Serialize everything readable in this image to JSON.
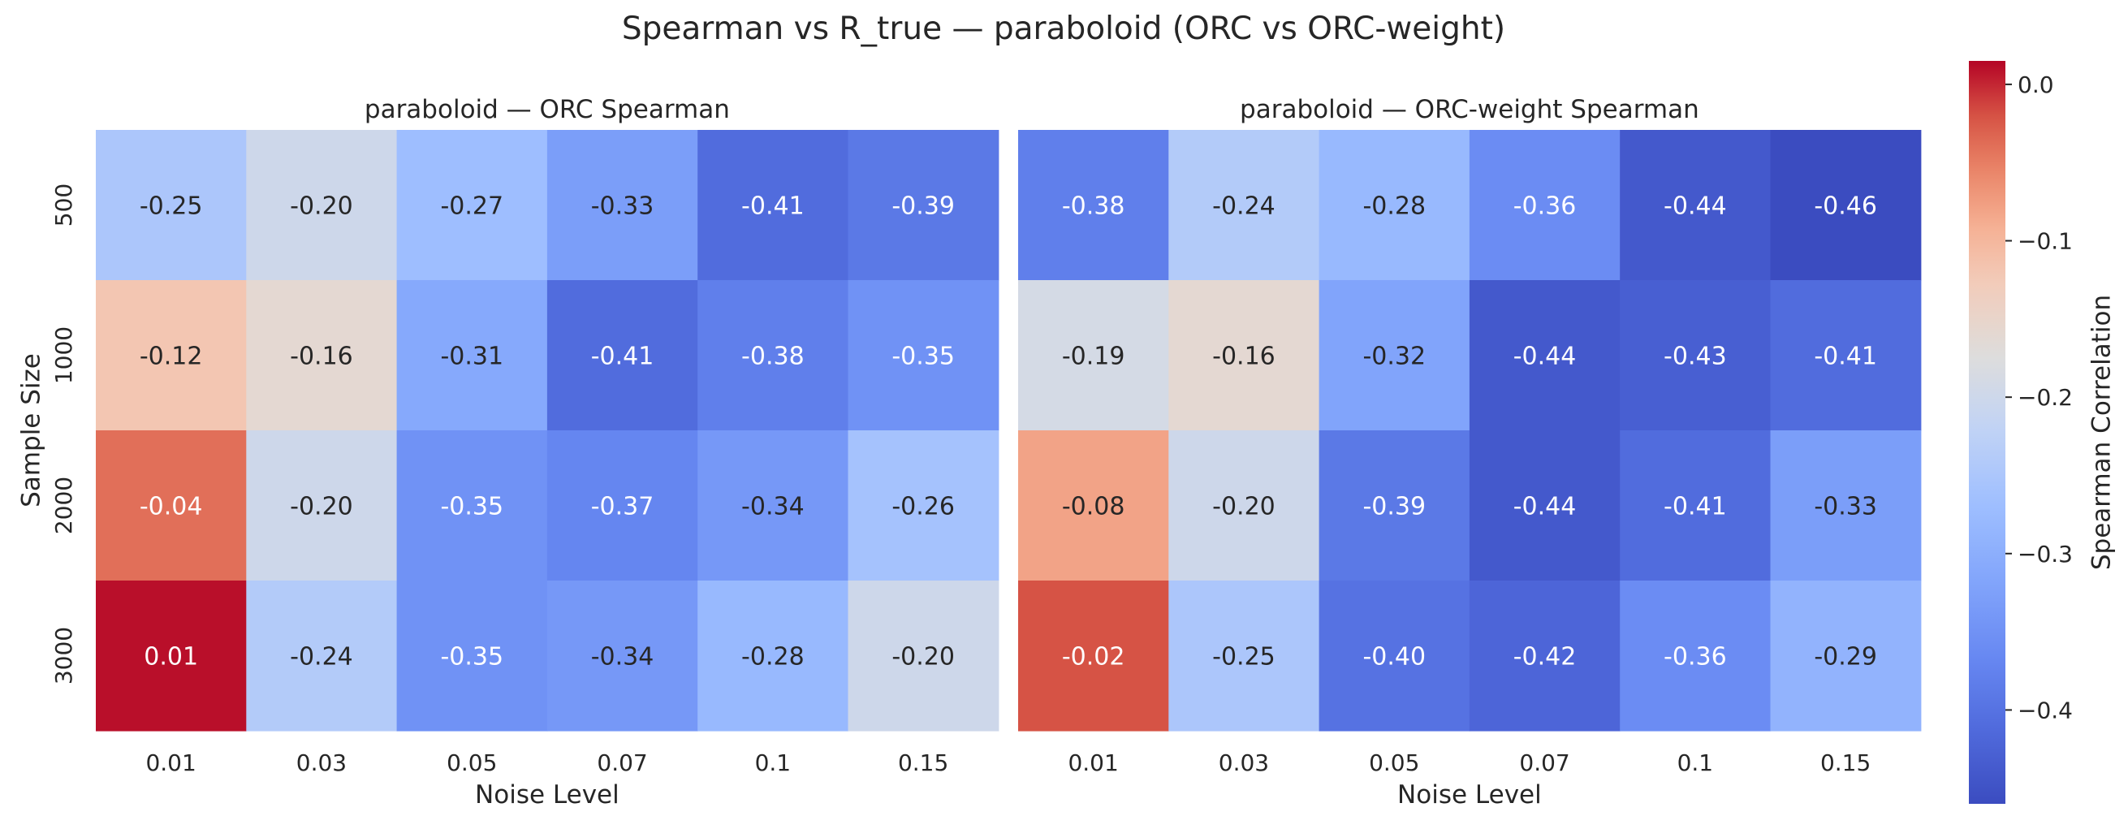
{
  "figure_title": "Spearman vs R_true — paraboloid (ORC vs ORC-weight)",
  "colorbar_label": "Spearman Correlation",
  "colormap": {
    "name": "coolwarm",
    "low": "#3b4cc0",
    "mid": "#dddddd",
    "high": "#b40426"
  },
  "chart_data": [
    {
      "type": "heatmap",
      "title": "paraboloid — ORC Spearman",
      "xlabel": "Noise Level",
      "ylabel": "Sample Size",
      "x": [
        "0.01",
        "0.03",
        "0.05",
        "0.07",
        "0.1",
        "0.15"
      ],
      "y": [
        "500",
        "1000",
        "2000",
        "3000"
      ],
      "values": [
        [
          -0.25,
          -0.2,
          -0.27,
          -0.33,
          -0.41,
          -0.39
        ],
        [
          -0.12,
          -0.16,
          -0.31,
          -0.41,
          -0.38,
          -0.35
        ],
        [
          -0.04,
          -0.2,
          -0.35,
          -0.37,
          -0.34,
          -0.26
        ],
        [
          0.01,
          -0.24,
          -0.35,
          -0.34,
          -0.28,
          -0.2
        ]
      ],
      "value_format": "2 decimals"
    },
    {
      "type": "heatmap",
      "title": "paraboloid — ORC-weight Spearman",
      "xlabel": "Noise Level",
      "ylabel": "",
      "x": [
        "0.01",
        "0.03",
        "0.05",
        "0.07",
        "0.1",
        "0.15"
      ],
      "y": [
        "500",
        "1000",
        "2000",
        "3000"
      ],
      "values": [
        [
          -0.38,
          -0.24,
          -0.28,
          -0.36,
          -0.44,
          -0.46
        ],
        [
          -0.19,
          -0.16,
          -0.32,
          -0.44,
          -0.43,
          -0.41
        ],
        [
          -0.08,
          -0.2,
          -0.39,
          -0.44,
          -0.41,
          -0.33
        ],
        [
          -0.02,
          -0.25,
          -0.4,
          -0.42,
          -0.36,
          -0.29
        ]
      ],
      "value_format": "2 decimals"
    }
  ],
  "colorbar": {
    "vmin": -0.46,
    "vmax": 0.015,
    "ticks": [
      "0.0",
      "−0.1",
      "−0.2",
      "−0.3",
      "−0.4"
    ],
    "tick_values": [
      0.0,
      -0.1,
      -0.2,
      -0.3,
      -0.4
    ]
  }
}
